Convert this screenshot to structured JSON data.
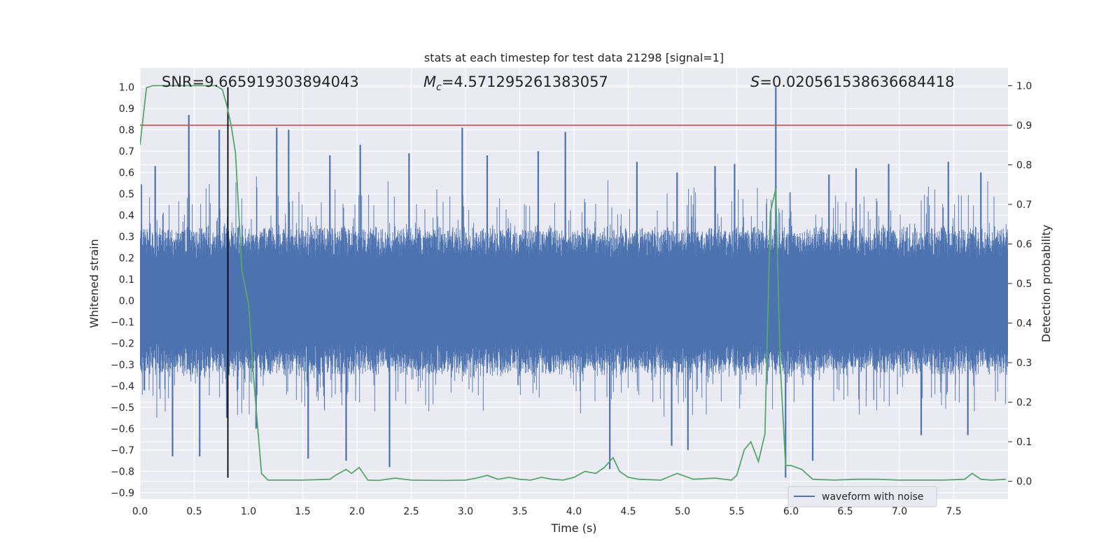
{
  "chart_data": {
    "type": "line",
    "title": "stats at each timestep for test data 21298 [signal=1]",
    "xlabel": "Time (s)",
    "ylabel_left": "Whitened strain",
    "ylabel_right": "Detection probability",
    "xlim": [
      0.0,
      8.0
    ],
    "ylim_left": [
      -0.93,
      1.09
    ],
    "ylim_right": [
      -0.045,
      1.045
    ],
    "grid": true,
    "x_ticks": [
      "0.0",
      "0.5",
      "1.0",
      "1.5",
      "2.0",
      "2.5",
      "3.0",
      "3.5",
      "4.0",
      "4.5",
      "5.0",
      "5.5",
      "6.0",
      "6.5",
      "7.0",
      "7.5"
    ],
    "x_tick_values": [
      0.0,
      0.5,
      1.0,
      1.5,
      2.0,
      2.5,
      3.0,
      3.5,
      4.0,
      4.5,
      5.0,
      5.5,
      6.0,
      6.5,
      7.0,
      7.5
    ],
    "y_ticks_left": [
      "1.0",
      "0.9",
      "0.8",
      "0.7",
      "0.6",
      "0.5",
      "0.4",
      "0.3",
      "0.2",
      "0.1",
      "0.0",
      "−0.1",
      "−0.2",
      "−0.3",
      "−0.4",
      "−0.5",
      "−0.6",
      "−0.7",
      "−0.8",
      "−0.9"
    ],
    "y_tick_values_left": [
      1.0,
      0.9,
      0.8,
      0.7,
      0.6,
      0.5,
      0.4,
      0.3,
      0.2,
      0.1,
      0.0,
      -0.1,
      -0.2,
      -0.3,
      -0.4,
      -0.5,
      -0.6,
      -0.7,
      -0.8,
      -0.9
    ],
    "y_ticks_right": [
      "1.0",
      "0.9",
      "0.8",
      "0.7",
      "0.6",
      "0.5",
      "0.4",
      "0.3",
      "0.2",
      "0.1",
      "0.0"
    ],
    "y_tick_values_right": [
      1.0,
      0.9,
      0.8,
      0.7,
      0.6,
      0.5,
      0.4,
      0.3,
      0.2,
      0.1,
      0.0
    ],
    "annotations": {
      "snr": "SNR=9.665919303894043",
      "mc_symbol": "M",
      "mc_sub": "c",
      "mc_value": "=4.571295261383057",
      "s_symbol": "S",
      "s_value": "=0.020561538636684418"
    },
    "threshold_right": 0.9,
    "marker_time": 0.81,
    "legend_position": "lower-right",
    "colors": {
      "background": "#eaeaf2",
      "grid": "#ffffff",
      "waveform": "#4c72b0",
      "probability": "#55a868",
      "threshold": "#c44e52",
      "marker": "#000000"
    },
    "series": [
      {
        "name": "waveform with noise",
        "axis": "left",
        "envelope": "dense noise, typical |amplitude| about 0.25-0.4, spikes listed below",
        "spikes_x": [
          0.04,
          0.14,
          0.3,
          0.45,
          0.55,
          0.73,
          0.8,
          1.07,
          1.26,
          1.37,
          1.55,
          1.75,
          1.9,
          2.03,
          2.3,
          2.48,
          2.97,
          3.2,
          3.67,
          3.92,
          4.33,
          4.58,
          4.9,
          4.95,
          5.05,
          5.3,
          5.48,
          5.86,
          5.95,
          6.2,
          6.35,
          6.6,
          6.9,
          7.2,
          7.45,
          7.63,
          7.75
        ],
        "spikes_y": [
          -0.42,
          0.63,
          -0.73,
          0.87,
          -0.73,
          0.8,
          -0.55,
          -0.6,
          0.81,
          0.8,
          -0.74,
          0.68,
          -0.75,
          0.73,
          -0.78,
          0.69,
          0.81,
          0.68,
          0.7,
          0.79,
          -0.79,
          0.65,
          -0.68,
          0.6,
          -0.7,
          0.63,
          0.64,
          1.0,
          -0.83,
          -0.75,
          0.59,
          0.62,
          0.64,
          -0.63,
          0.65,
          -0.63,
          0.6
        ]
      },
      {
        "name": "detection probability",
        "axis": "right",
        "x": [
          0.0,
          0.06,
          0.12,
          0.25,
          0.4,
          0.5,
          0.6,
          0.7,
          0.76,
          0.8,
          0.84,
          0.88,
          0.94,
          1.0,
          1.05,
          1.12,
          1.18,
          1.3,
          1.5,
          1.75,
          1.8,
          1.9,
          1.95,
          2.02,
          2.1,
          2.2,
          2.35,
          2.5,
          2.8,
          3.0,
          3.1,
          3.2,
          3.3,
          3.4,
          3.5,
          3.6,
          3.7,
          3.8,
          3.9,
          4.0,
          4.1,
          4.2,
          4.28,
          4.36,
          4.42,
          4.5,
          4.6,
          4.8,
          4.95,
          5.1,
          5.3,
          5.45,
          5.5,
          5.57,
          5.63,
          5.7,
          5.76,
          5.81,
          5.86,
          5.9,
          5.95,
          6.0,
          6.1,
          6.2,
          6.4,
          6.6,
          6.8,
          7.0,
          7.2,
          7.4,
          7.6,
          7.67,
          7.75,
          7.85,
          7.98
        ],
        "y": [
          0.85,
          0.995,
          1.0,
          1.0,
          1.0,
          1.0,
          1.0,
          1.0,
          0.99,
          0.95,
          0.9,
          0.83,
          0.53,
          0.45,
          0.25,
          0.02,
          0.003,
          0.003,
          0.003,
          0.005,
          0.015,
          0.03,
          0.02,
          0.035,
          0.003,
          0.002,
          0.008,
          0.003,
          0.002,
          0.003,
          0.008,
          0.015,
          0.005,
          0.01,
          0.005,
          0.003,
          0.01,
          0.005,
          0.003,
          0.01,
          0.025,
          0.02,
          0.035,
          0.06,
          0.025,
          0.01,
          0.005,
          0.003,
          0.02,
          0.005,
          0.008,
          0.003,
          0.015,
          0.08,
          0.1,
          0.05,
          0.12,
          0.68,
          0.74,
          0.3,
          0.04,
          0.04,
          0.03,
          0.005,
          0.003,
          0.005,
          0.005,
          0.003,
          0.003,
          0.003,
          0.005,
          0.02,
          0.005,
          0.003,
          0.005
        ]
      }
    ]
  }
}
